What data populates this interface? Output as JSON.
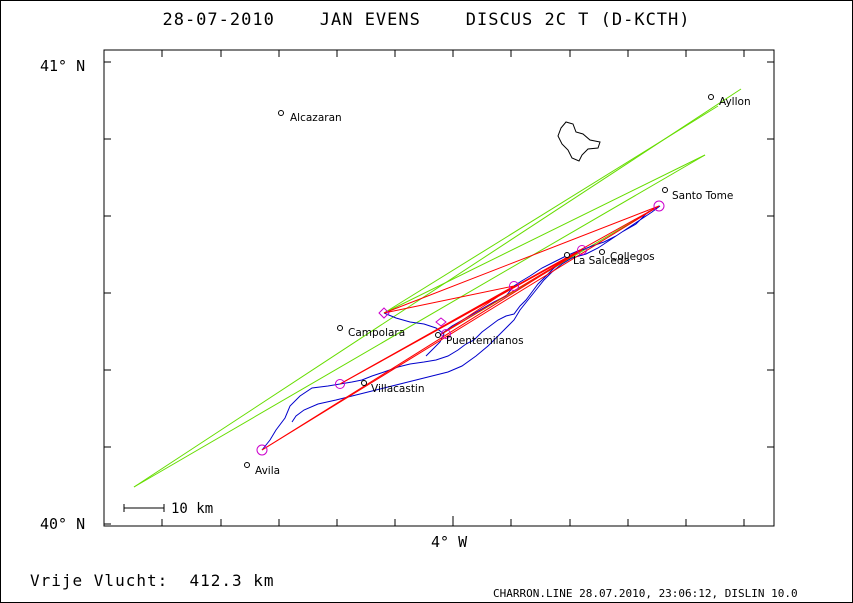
{
  "title": "28-07-2010    JAN EVENS    DISCUS 2C T (D-KCTH)",
  "axes": {
    "lat_top": "41° N",
    "lat_bottom": "40° N",
    "lon_mid": "4° W"
  },
  "scale": {
    "label": "10 km"
  },
  "footer": {
    "distance": "Vrije Vlucht:  412.3 km",
    "credit": "CHARRON.LINE 28.07.2010, 23:06:12, DISLIN 10.0"
  },
  "towns": [
    {
      "name": "Alcazaran"
    },
    {
      "name": "Ayllon"
    },
    {
      "name": "Santo Tome"
    },
    {
      "name": "Collegos"
    },
    {
      "name": "La Salceda"
    },
    {
      "name": "Campolara"
    },
    {
      "name": "Puentemilanos"
    },
    {
      "name": "Villacastin"
    },
    {
      "name": "Avila"
    }
  ],
  "colors": {
    "track": "#0000cc",
    "task": "#ff0000",
    "sector": "#66dd00",
    "turnpoint": "#cc00cc"
  }
}
